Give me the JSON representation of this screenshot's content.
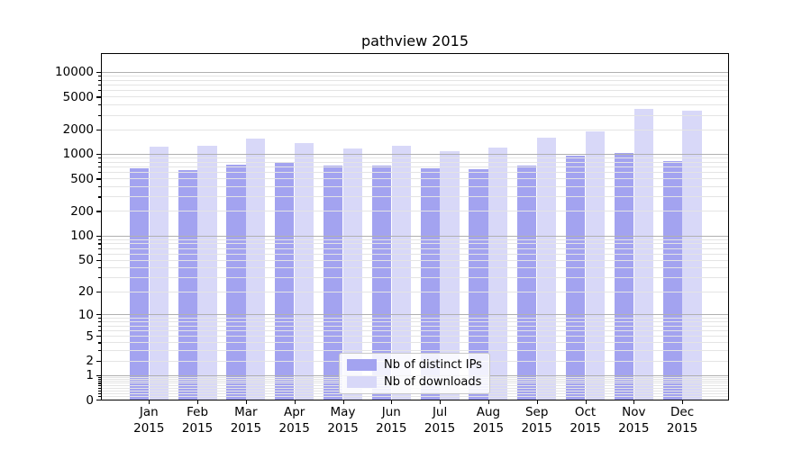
{
  "chart_data": {
    "type": "bar",
    "title": "pathview 2015",
    "categories": [
      "Jan",
      "Feb",
      "Mar",
      "Apr",
      "May",
      "Jun",
      "Jul",
      "Aug",
      "Sep",
      "Oct",
      "Nov",
      "Dec"
    ],
    "category_year": "2015",
    "series": [
      {
        "name": "Nb of distinct IPs",
        "color": "#a3a3f0",
        "values": [
          665,
          635,
          730,
          775,
          710,
          710,
          660,
          645,
          720,
          940,
          1020,
          815
        ]
      },
      {
        "name": "Nb of downloads",
        "color": "#d8d8f8",
        "values": [
          1235,
          1260,
          1525,
          1360,
          1165,
          1270,
          1070,
          1195,
          1565,
          1880,
          3550,
          3350
        ]
      }
    ],
    "yscale": "log10(1+value)",
    "ylim": [
      0,
      17000
    ],
    "y_ticks": [
      0,
      1,
      2,
      5,
      10,
      20,
      50,
      100,
      200,
      500,
      1000,
      2000,
      5000,
      10000
    ],
    "y_tick_labels": [
      "0",
      "1",
      "2",
      "5",
      "10",
      "20",
      "50",
      "100",
      "200",
      "500",
      "1000",
      "2000",
      "5000",
      "10000"
    ],
    "major_decades": [
      1,
      10,
      100,
      1000,
      10000
    ],
    "grid": "both",
    "legend_position": "lower-center"
  },
  "legend": {
    "items": [
      "Nb of distinct IPs",
      "Nb of downloads"
    ]
  },
  "colors": {
    "ips_bar": "#a3a3f0",
    "downloads_bar": "#d8d8f8",
    "grid_major": "#b0b0b0",
    "grid_minor": "#e4e4e4",
    "spine": "#000000",
    "background": "#ffffff",
    "text": "#000000"
  }
}
